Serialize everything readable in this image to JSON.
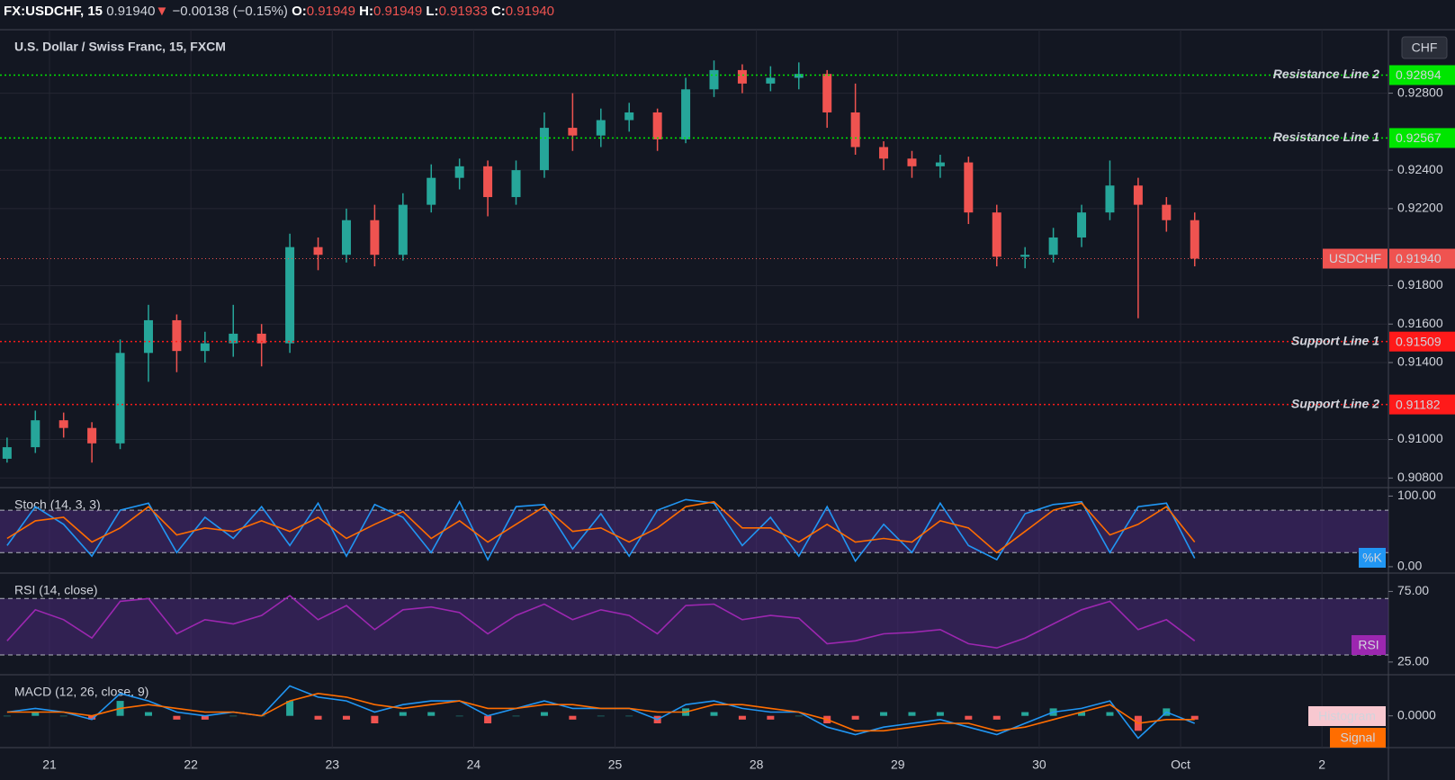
{
  "header": {
    "symbol": "FX:USDCHF, 15",
    "last": "0.91940",
    "arrow": "▼",
    "change": "−0.00138 (−0.15%)",
    "open_label": "O:",
    "open": "0.91949",
    "high_label": "H:",
    "high": "0.91949",
    "low_label": "L:",
    "low": "0.91933",
    "close_label": "C:",
    "close": "0.91940"
  },
  "chart_data": [
    {
      "type": "candlestick",
      "title": "U.S. Dollar / Swiss Franc, 15, FXCM",
      "currency": "CHF",
      "x": [
        -0.3,
        -0.1,
        0.1,
        0.3,
        0.5,
        0.7,
        0.9,
        1.1,
        1.3,
        1.5,
        1.7,
        1.9,
        2.1,
        2.3,
        2.5,
        2.7,
        2.9,
        3.1,
        3.3,
        3.5,
        3.7,
        3.9,
        4.1,
        4.3,
        4.5,
        4.7,
        4.9,
        5.1,
        5.3,
        5.5,
        5.7,
        5.9,
        6.1,
        6.3,
        6.5,
        6.7,
        6.9,
        7.1,
        7.3,
        7.5,
        7.7,
        7.9,
        8.1
      ],
      "open": [
        0.909,
        0.9096,
        0.911,
        0.9106,
        0.9098,
        0.9145,
        0.9162,
        0.9146,
        0.915,
        0.9155,
        0.915,
        0.92,
        0.9196,
        0.9214,
        0.9196,
        0.9222,
        0.9236,
        0.9242,
        0.9226,
        0.924,
        0.9262,
        0.9258,
        0.9266,
        0.927,
        0.9256,
        0.9282,
        0.9292,
        0.9285,
        0.9288,
        0.929,
        0.927,
        0.9252,
        0.9246,
        0.9242,
        0.9244,
        0.9218,
        0.9195,
        0.9196,
        0.9205,
        0.9218,
        0.9232,
        0.9222,
        0.9214
      ],
      "high": [
        0.9101,
        0.9115,
        0.9114,
        0.9109,
        0.9152,
        0.917,
        0.9165,
        0.9156,
        0.917,
        0.916,
        0.9207,
        0.9205,
        0.922,
        0.9222,
        0.9228,
        0.9243,
        0.9246,
        0.9245,
        0.9245,
        0.927,
        0.928,
        0.9272,
        0.9275,
        0.9272,
        0.9288,
        0.9297,
        0.9295,
        0.9294,
        0.9296,
        0.9292,
        0.9285,
        0.9255,
        0.925,
        0.9248,
        0.9247,
        0.9222,
        0.92,
        0.921,
        0.9222,
        0.9245,
        0.9236,
        0.9226,
        0.9218
      ],
      "low": [
        0.9088,
        0.9093,
        0.9101,
        0.9088,
        0.9095,
        0.913,
        0.9135,
        0.914,
        0.9143,
        0.9138,
        0.9145,
        0.9188,
        0.9192,
        0.919,
        0.9193,
        0.9218,
        0.923,
        0.9216,
        0.9222,
        0.9236,
        0.925,
        0.9252,
        0.926,
        0.925,
        0.9254,
        0.9278,
        0.928,
        0.9281,
        0.9282,
        0.9262,
        0.9248,
        0.924,
        0.9236,
        0.9236,
        0.9212,
        0.919,
        0.9189,
        0.9192,
        0.92,
        0.9214,
        0.9163,
        0.9208,
        0.919
      ],
      "close": [
        0.9096,
        0.911,
        0.9106,
        0.9098,
        0.9145,
        0.9162,
        0.9146,
        0.915,
        0.9155,
        0.915,
        0.92,
        0.9196,
        0.9214,
        0.9196,
        0.9222,
        0.9236,
        0.9242,
        0.9226,
        0.924,
        0.9262,
        0.9258,
        0.9266,
        0.927,
        0.9256,
        0.9282,
        0.9292,
        0.9285,
        0.9288,
        0.929,
        0.927,
        0.9252,
        0.9246,
        0.9242,
        0.9244,
        0.9218,
        0.9195,
        0.9196,
        0.9205,
        0.9218,
        0.9232,
        0.9222,
        0.9214,
        0.9194
      ],
      "up_color": "#26a69a",
      "down_color": "#ef5350",
      "xlim": [
        -0.35,
        9.47
      ],
      "xticks": [
        {
          "value": 0,
          "label": "21"
        },
        {
          "value": 1,
          "label": "22"
        },
        {
          "value": 2,
          "label": "23"
        },
        {
          "value": 3,
          "label": "24"
        },
        {
          "value": 4,
          "label": "25"
        },
        {
          "value": 5,
          "label": "28"
        },
        {
          "value": 6,
          "label": "29"
        },
        {
          "value": 7,
          "label": "30"
        },
        {
          "value": 8,
          "label": "Oct"
        },
        {
          "value": 9,
          "label": "2"
        }
      ],
      "ylim": [
        0.9075,
        0.9313
      ],
      "yticks": [
        {
          "value": 0.908,
          "label": "0.90800"
        },
        {
          "value": 0.91,
          "label": "0.91000"
        },
        {
          "value": 0.914,
          "label": "0.91400"
        },
        {
          "value": 0.916,
          "label": "0.91600"
        },
        {
          "value": 0.918,
          "label": "0.91800"
        },
        {
          "value": 0.922,
          "label": "0.92200"
        },
        {
          "value": 0.924,
          "label": "0.92400"
        },
        {
          "value": 0.928,
          "label": "0.92800"
        }
      ],
      "grid": true,
      "lines": [
        {
          "name": "Resistance Line 2",
          "value": 0.92894,
          "color": "#00e600"
        },
        {
          "name": "Resistance Line 1",
          "value": 0.92567,
          "color": "#00e600"
        },
        {
          "name": "Support Line 1",
          "value": 0.91509,
          "color": "#ff1a1a"
        },
        {
          "name": "Support Line 2",
          "value": 0.91182,
          "color": "#ff1a1a"
        }
      ],
      "last_price": {
        "name": "USDCHF",
        "value": 0.9194,
        "label": "0.91940",
        "color": "#ef5350"
      }
    },
    {
      "type": "line",
      "title": "Stoch (14, 3, 3)",
      "series": [
        {
          "name": "%K",
          "color": "#2196f3",
          "values": [
            30,
            85,
            60,
            15,
            80,
            90,
            20,
            70,
            40,
            85,
            30,
            90,
            15,
            88,
            70,
            20,
            92,
            10,
            85,
            88,
            25,
            75,
            15,
            80,
            95,
            90,
            30,
            70,
            15,
            85,
            8,
            60,
            20,
            90,
            30,
            10,
            75,
            88,
            92,
            20,
            85,
            90,
            12
          ]
        },
        {
          "color": "#ff6d00",
          "values": [
            40,
            65,
            70,
            35,
            55,
            85,
            45,
            55,
            50,
            65,
            50,
            70,
            40,
            60,
            78,
            40,
            65,
            35,
            60,
            85,
            50,
            55,
            35,
            55,
            85,
            92,
            55,
            55,
            35,
            60,
            35,
            40,
            35,
            65,
            55,
            20,
            50,
            80,
            90,
            45,
            60,
            85,
            35
          ]
        }
      ],
      "ylim": [
        -9,
        112
      ],
      "yticks": [
        {
          "value": 100,
          "label": "100.00"
        },
        {
          "value": 0,
          "label": "0.00"
        }
      ],
      "hlines": [
        80,
        20
      ],
      "band_color": "#4a2a7a"
    },
    {
      "type": "line",
      "title": "RSI (14, close)",
      "series": [
        {
          "name": "RSI",
          "color": "#9c27b0",
          "values": [
            40,
            62,
            55,
            42,
            68,
            70,
            45,
            55,
            52,
            58,
            72,
            55,
            65,
            48,
            62,
            64,
            60,
            45,
            58,
            66,
            55,
            62,
            58,
            45,
            65,
            66,
            55,
            58,
            56,
            38,
            40,
            45,
            46,
            48,
            38,
            35,
            42,
            52,
            62,
            68,
            48,
            55,
            40
          ]
        }
      ],
      "ylim": [
        16,
        88
      ],
      "yticks": [
        {
          "value": 75,
          "label": "75.00"
        },
        {
          "value": 25,
          "label": "25.00"
        }
      ],
      "hlines": [
        70,
        30
      ],
      "band_color": "#4a2a7a"
    },
    {
      "type": "macd",
      "title": "MACD (12, 26, close, 9)",
      "histogram": {
        "name": "Histogram",
        "color": "#f8c8d0",
        "up_color": "#26a69a",
        "down_color": "#ef5350",
        "values": [
          0,
          0.0001,
          0,
          -0.0001,
          0.0004,
          0.0001,
          -0.0001,
          -0.0001,
          0,
          0,
          0.0004,
          -0.0001,
          -0.0001,
          -0.0002,
          0.0001,
          0.0001,
          0,
          -0.0002,
          0,
          0.0001,
          -0.0001,
          0,
          0,
          -0.0002,
          0.0002,
          0.0001,
          -0.0001,
          -0.0001,
          0,
          -0.0002,
          -0.0001,
          0.0001,
          0.0001,
          0.0001,
          -0.0001,
          -0.0001,
          0.0001,
          0.0002,
          0.0001,
          0.0001,
          -0.0004,
          0.0002,
          -0.0001
        ]
      },
      "series": [
        {
          "color": "#2196f3",
          "values": [
            0.0001,
            0.0002,
            0.0001,
            -0.0001,
            0.0006,
            0.0004,
            0.0001,
            0,
            0.0001,
            0,
            0.0008,
            0.0005,
            0.0004,
            0.0001,
            0.0003,
            0.0004,
            0.0004,
            0,
            0.0002,
            0.0004,
            0.0002,
            0.0002,
            0.0002,
            -0.0001,
            0.0003,
            0.0004,
            0.0002,
            0.0001,
            0.0001,
            -0.0003,
            -0.0005,
            -0.0003,
            -0.0002,
            -0.0001,
            -0.0003,
            -0.0005,
            -0.0002,
            0.0001,
            0.0002,
            0.0004,
            -0.0006,
            0.0001,
            -0.0002
          ]
        },
        {
          "name": "Signal",
          "color": "#ff6d00",
          "values": [
            0.0001,
            0.0001,
            0.0001,
            0,
            0.0002,
            0.0003,
            0.0002,
            0.0001,
            0.0001,
            0,
            0.0004,
            0.0006,
            0.0005,
            0.0003,
            0.0002,
            0.0003,
            0.0004,
            0.0002,
            0.0002,
            0.0003,
            0.0003,
            0.0002,
            0.0002,
            0.0001,
            0.0001,
            0.0003,
            0.0003,
            0.0002,
            0.0001,
            -0.0001,
            -0.0004,
            -0.0004,
            -0.0003,
            -0.0002,
            -0.0002,
            -0.0004,
            -0.0003,
            -0.0001,
            0.0001,
            0.0003,
            -0.0002,
            -0.0001,
            -0.0001
          ]
        }
      ],
      "ylim": [
        -0.00085,
        0.0011
      ],
      "yticks": [
        {
          "value": 0,
          "label": "0.0000"
        }
      ]
    }
  ]
}
